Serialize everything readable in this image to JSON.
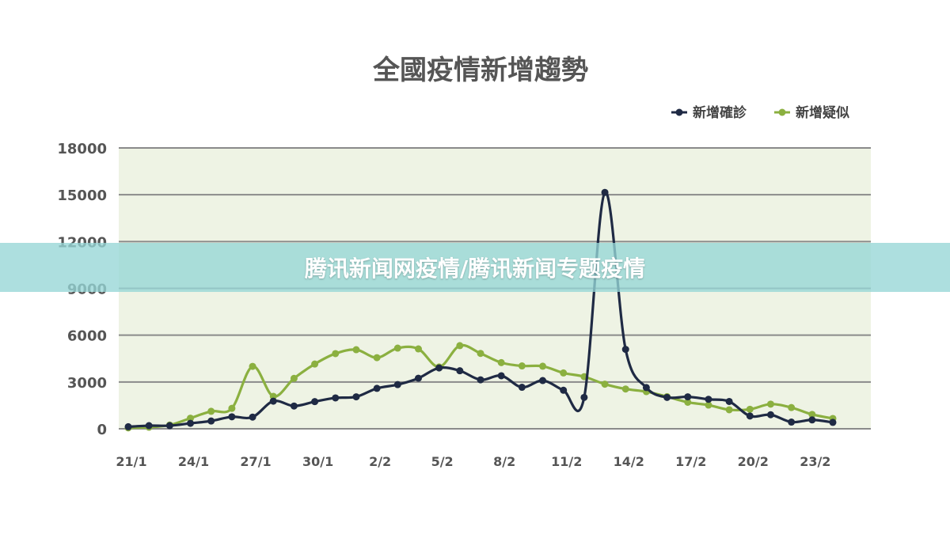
{
  "chart_data": {
    "type": "line",
    "title": "全國疫情新增趨勢",
    "xlabel": "",
    "ylabel": "",
    "ylim": [
      0,
      18000
    ],
    "yticks": [
      0,
      3000,
      6000,
      9000,
      12000,
      15000,
      18000
    ],
    "x_tick_labels": [
      "21/1",
      "24/1",
      "27/1",
      "30/1",
      "2/2",
      "5/2",
      "8/2",
      "11/2",
      "14/2",
      "17/2",
      "20/2",
      "23/2"
    ],
    "grid": "horizontal",
    "legend_position": "top-right",
    "plot_background": "#eef3e4",
    "series": [
      {
        "name": "新增確診",
        "color": "#1f2a44",
        "values": [
          130,
          200,
          200,
          350,
          500,
          770,
          750,
          1770,
          1460,
          1740,
          1980,
          2050,
          2590,
          2830,
          3240,
          3900,
          3720,
          3140,
          3400,
          2660,
          3090,
          2470,
          2010,
          15150,
          5090,
          2640,
          2010,
          2050,
          1890,
          1750,
          820,
          900,
          430,
          570,
          410
        ]
      },
      {
        "name": "新增疑似",
        "color": "#8bb040",
        "values": [
          60,
          100,
          240,
          680,
          1120,
          1310,
          4000,
          2080,
          3230,
          4150,
          4820,
          5070,
          4560,
          5170,
          5120,
          3960,
          5330,
          4830,
          4240,
          4030,
          4010,
          3580,
          3340,
          2860,
          2550,
          2380,
          2060,
          1700,
          1520,
          1220,
          1250,
          1580,
          1360,
          920,
          660
        ]
      }
    ]
  },
  "banner": {
    "text": "腾讯新闻网疫情/腾讯新闻专题疫情"
  }
}
